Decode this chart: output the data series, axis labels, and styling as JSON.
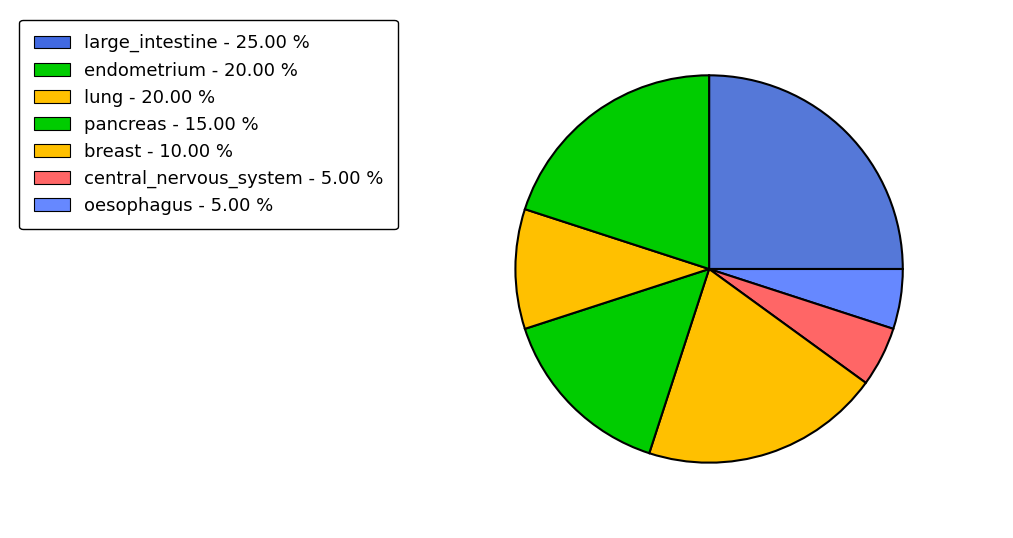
{
  "legend_labels": [
    "large_intestine - 25.00 %",
    "endometrium - 20.00 %",
    "lung - 20.00 %",
    "pancreas - 15.00 %",
    "breast - 10.00 %",
    "central_nervous_system - 5.00 %",
    "oesophagus - 5.00 %"
  ],
  "legend_colors": [
    "#4169e1",
    "#00cc00",
    "#ffc000",
    "#00cc00",
    "#ffc000",
    "#ff6666",
    "#6688ff"
  ],
  "wedge_sizes": [
    25,
    5,
    5,
    20,
    15,
    10,
    20
  ],
  "wedge_colors": [
    "#5578d8",
    "#6688ff",
    "#ff6666",
    "#ffc000",
    "#00cc00",
    "#ffc000",
    "#00cc00"
  ],
  "startangle": 90,
  "counterclock": false,
  "background_color": "#ffffff",
  "legend_fontsize": 13,
  "figsize": [
    10.13,
    5.38
  ],
  "dpi": 100
}
